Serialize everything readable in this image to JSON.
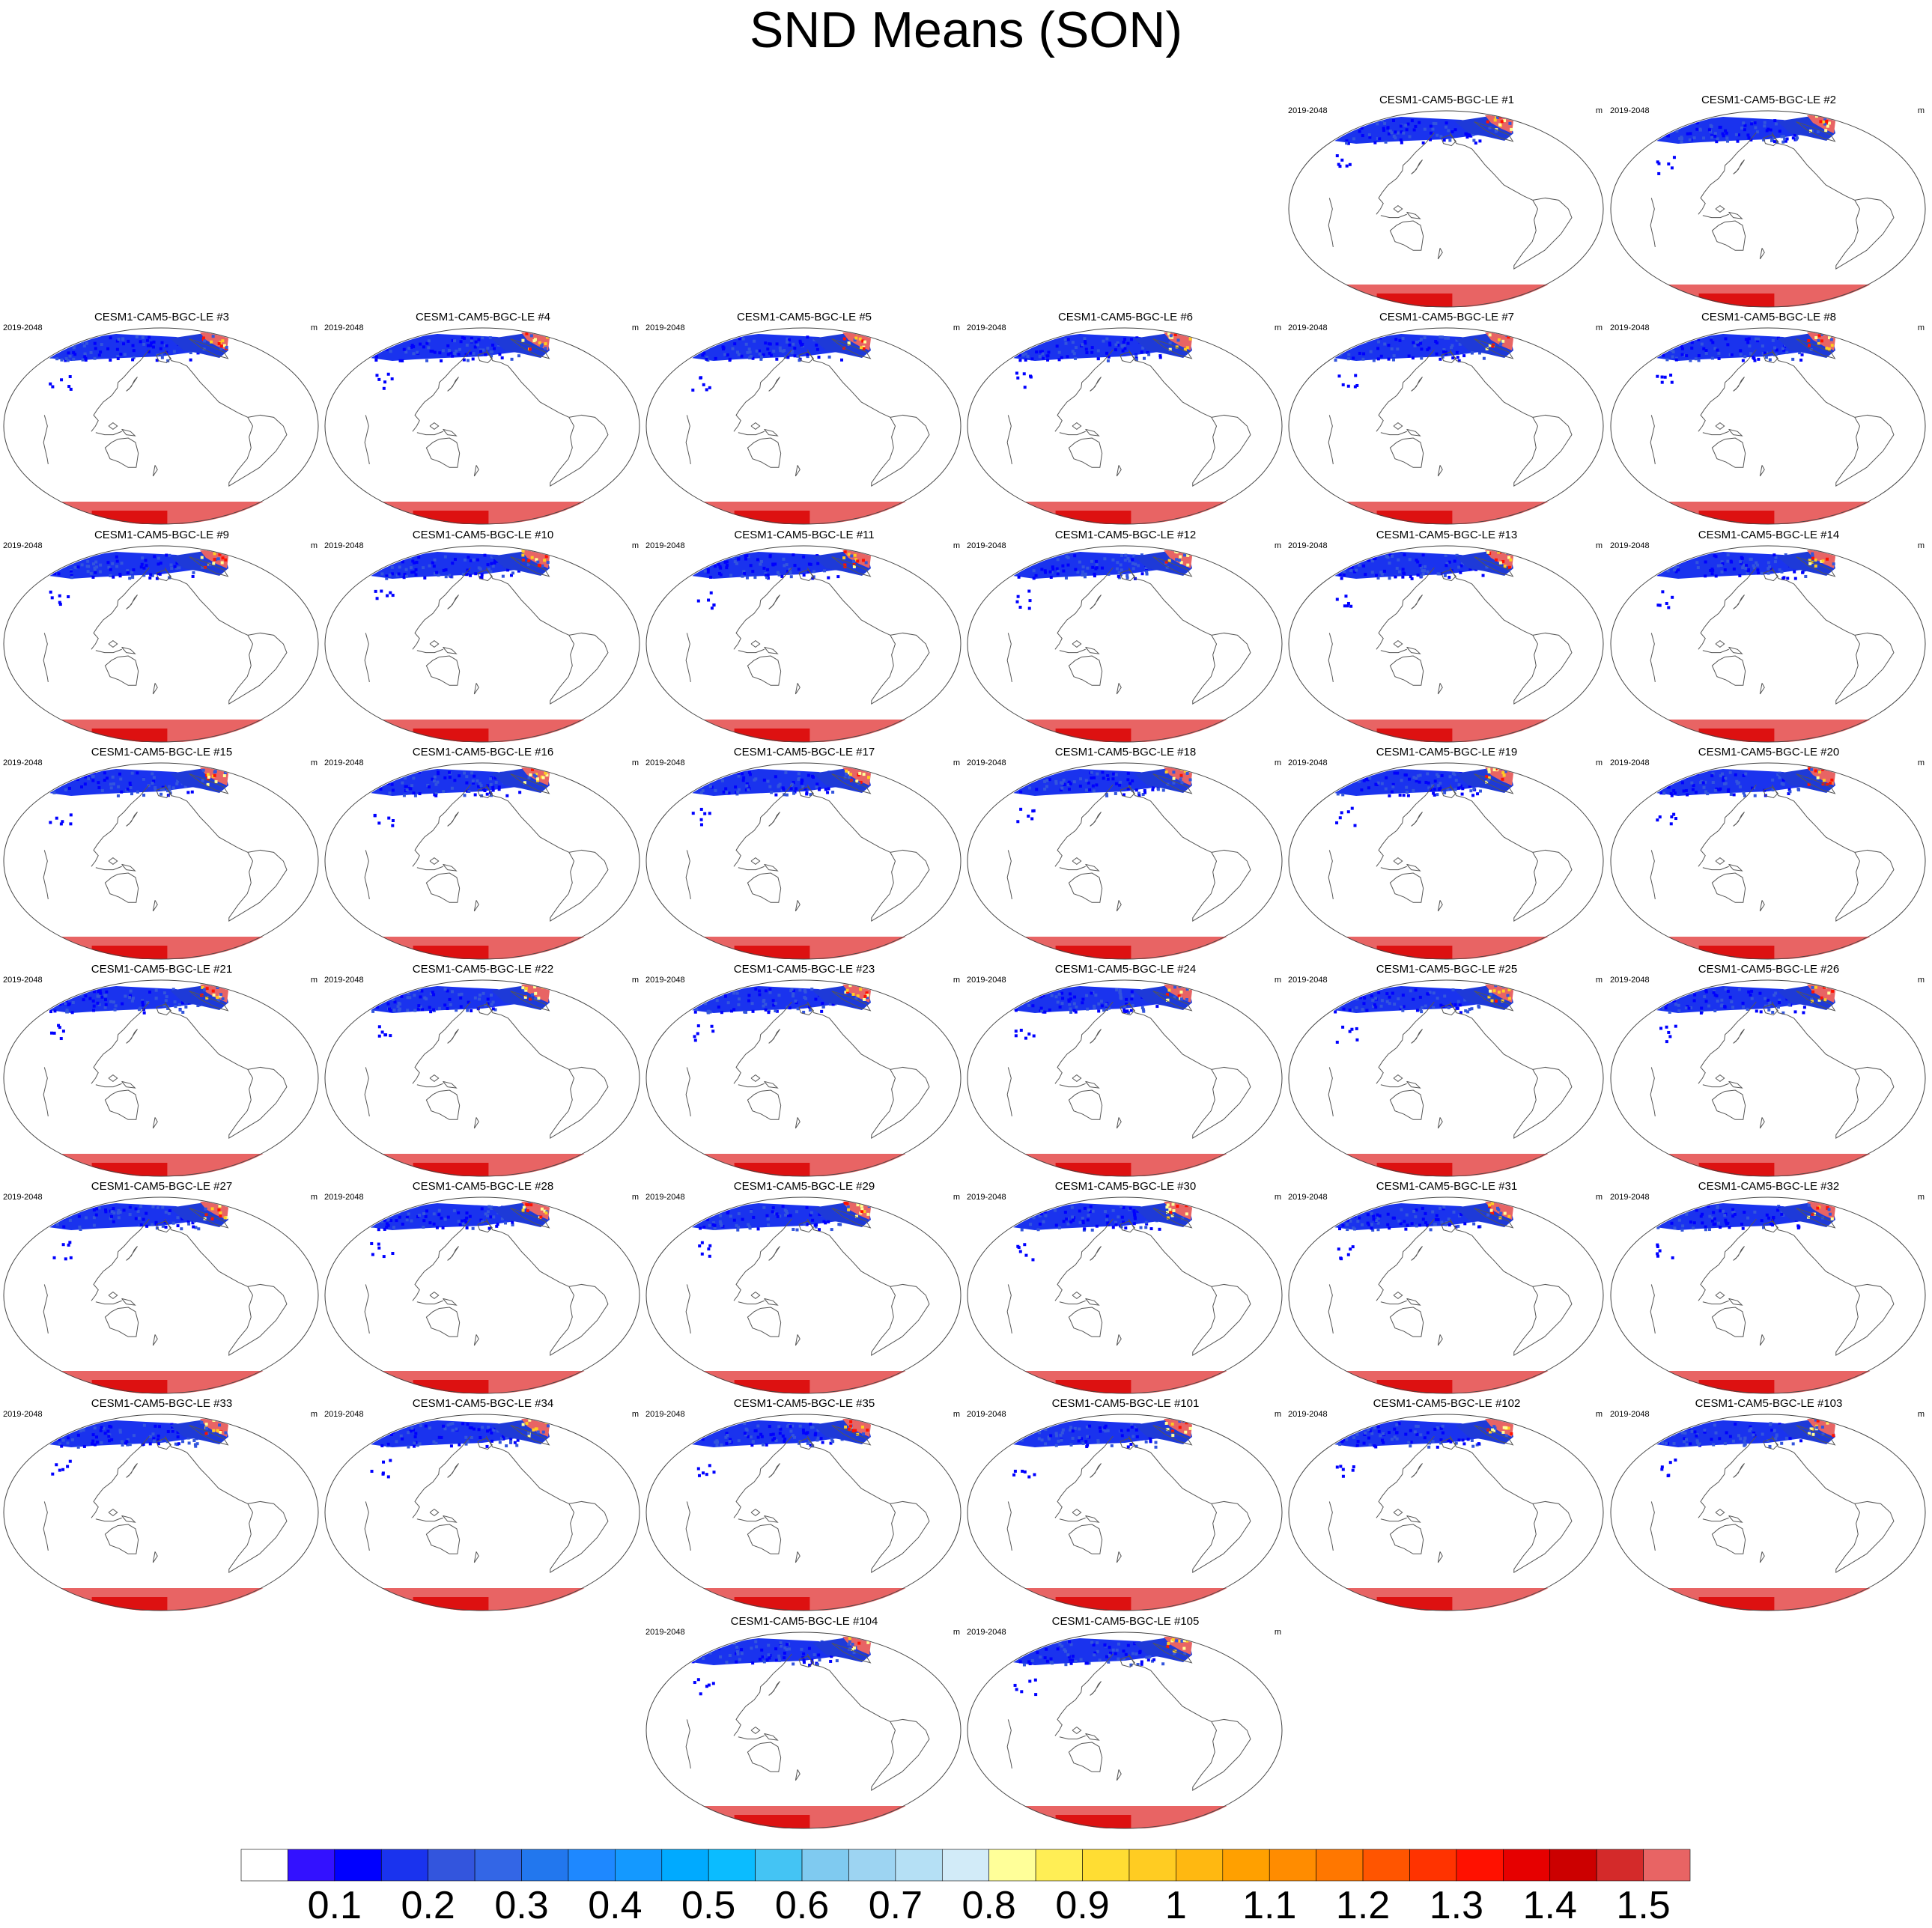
{
  "title": "SND Means (SON)",
  "panel_period": "2019-2048",
  "panel_units": "m",
  "panels": [
    {
      "title": "CESM1-CAM5-BGC-LE #1"
    },
    {
      "title": "CESM1-CAM5-BGC-LE #2"
    },
    {
      "title": "CESM1-CAM5-BGC-LE #3"
    },
    {
      "title": "CESM1-CAM5-BGC-LE #4"
    },
    {
      "title": "CESM1-CAM5-BGC-LE #5"
    },
    {
      "title": "CESM1-CAM5-BGC-LE #6"
    },
    {
      "title": "CESM1-CAM5-BGC-LE #7"
    },
    {
      "title": "CESM1-CAM5-BGC-LE #8"
    },
    {
      "title": "CESM1-CAM5-BGC-LE #9"
    },
    {
      "title": "CESM1-CAM5-BGC-LE #10"
    },
    {
      "title": "CESM1-CAM5-BGC-LE #11"
    },
    {
      "title": "CESM1-CAM5-BGC-LE #12"
    },
    {
      "title": "CESM1-CAM5-BGC-LE #13"
    },
    {
      "title": "CESM1-CAM5-BGC-LE #14"
    },
    {
      "title": "CESM1-CAM5-BGC-LE #15"
    },
    {
      "title": "CESM1-CAM5-BGC-LE #16"
    },
    {
      "title": "CESM1-CAM5-BGC-LE #17"
    },
    {
      "title": "CESM1-CAM5-BGC-LE #18"
    },
    {
      "title": "CESM1-CAM5-BGC-LE #19"
    },
    {
      "title": "CESM1-CAM5-BGC-LE #20"
    },
    {
      "title": "CESM1-CAM5-BGC-LE #21"
    },
    {
      "title": "CESM1-CAM5-BGC-LE #22"
    },
    {
      "title": "CESM1-CAM5-BGC-LE #23"
    },
    {
      "title": "CESM1-CAM5-BGC-LE #24"
    },
    {
      "title": "CESM1-CAM5-BGC-LE #25"
    },
    {
      "title": "CESM1-CAM5-BGC-LE #26"
    },
    {
      "title": "CESM1-CAM5-BGC-LE #27"
    },
    {
      "title": "CESM1-CAM5-BGC-LE #28"
    },
    {
      "title": "CESM1-CAM5-BGC-LE #29"
    },
    {
      "title": "CESM1-CAM5-BGC-LE #30"
    },
    {
      "title": "CESM1-CAM5-BGC-LE #31"
    },
    {
      "title": "CESM1-CAM5-BGC-LE #32"
    },
    {
      "title": "CESM1-CAM5-BGC-LE #33"
    },
    {
      "title": "CESM1-CAM5-BGC-LE #34"
    },
    {
      "title": "CESM1-CAM5-BGC-LE #35"
    },
    {
      "title": "CESM1-CAM5-BGC-LE #101"
    },
    {
      "title": "CESM1-CAM5-BGC-LE #102"
    },
    {
      "title": "CESM1-CAM5-BGC-LE #103"
    },
    {
      "title": "CESM1-CAM5-BGC-LE #104"
    },
    {
      "title": "CESM1-CAM5-BGC-LE #105"
    }
  ],
  "colorbar": {
    "labels": [
      "0.1",
      "0.2",
      "0.3",
      "0.4",
      "0.5",
      "0.6",
      "0.7",
      "0.8",
      "0.9",
      "1",
      "1.1",
      "1.2",
      "1.3",
      "1.4",
      "1.5"
    ],
    "colors": [
      "#ffffff",
      "#3311ff",
      "#0000ff",
      "#1a33ee",
      "#3355dd",
      "#3366e6",
      "#2277ee",
      "#1e88ff",
      "#1499ff",
      "#00aaff",
      "#0bbcff",
      "#44c4f4",
      "#7fcaf0",
      "#9dd4f2",
      "#b5e0f5",
      "#d2ebf8",
      "#ffff99",
      "#ffee55",
      "#ffdd33",
      "#ffcc22",
      "#ffb811",
      "#ffa000",
      "#ff8c00",
      "#ff7700",
      "#ff5500",
      "#ff3300",
      "#ff1100",
      "#e60000",
      "#cc0000",
      "#d42a2a",
      "#e86464"
    ]
  }
}
